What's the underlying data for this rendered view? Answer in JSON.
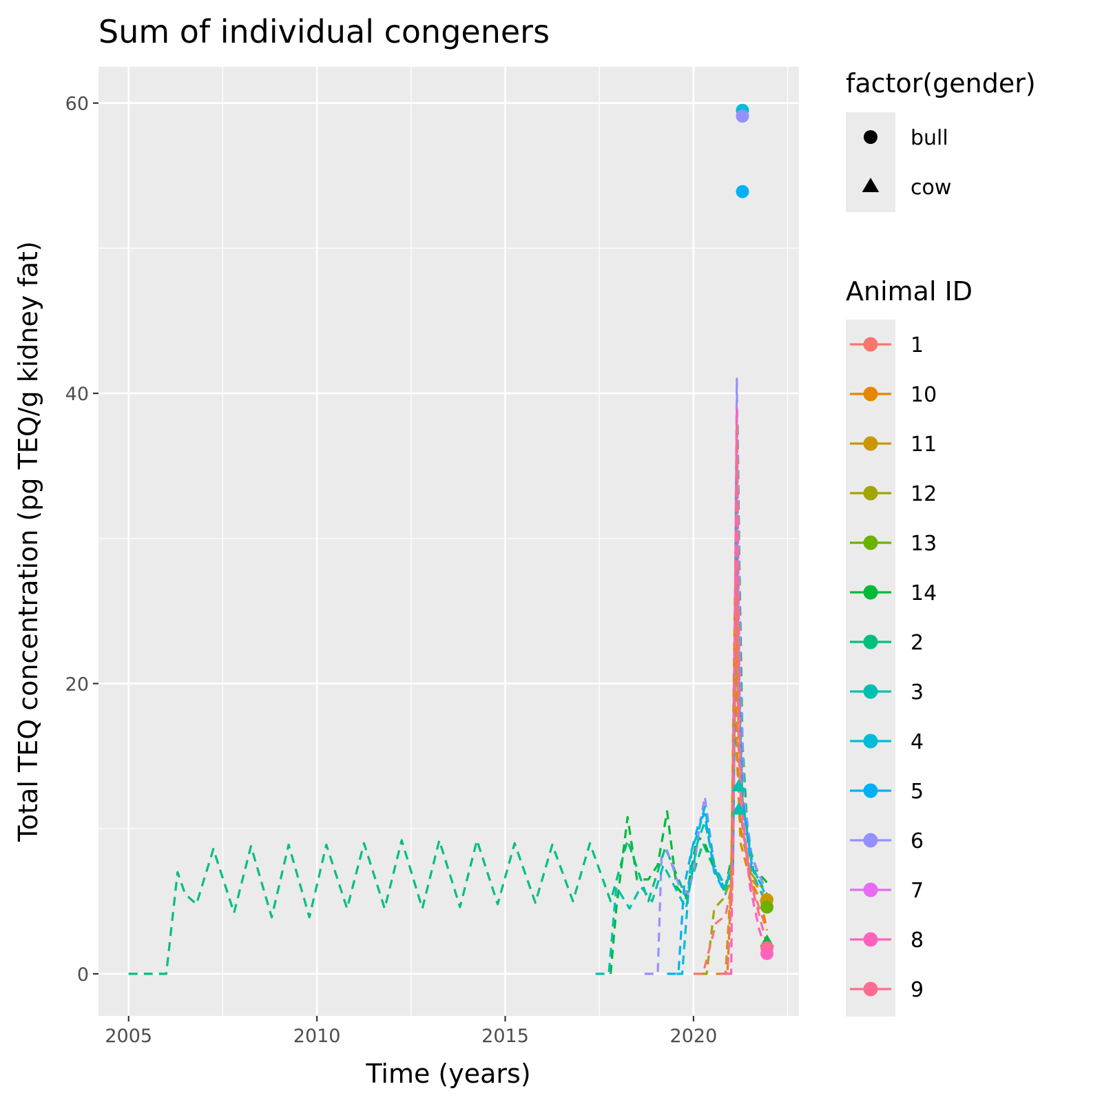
{
  "chart_data": {
    "type": "line",
    "title": "Sum of individual congeners",
    "xlabel": "Time (years)",
    "ylabel": "Total TEQ concentration (pg TEQ/g kidney fat)",
    "xlim": [
      2004.2,
      2022.8
    ],
    "ylim": [
      -2.9,
      62.5
    ],
    "x_ticks": [
      2005,
      2010,
      2015,
      2020
    ],
    "y_ticks": [
      0,
      20,
      40,
      60
    ],
    "x_tick_labels": [
      "2005",
      "2010",
      "2015",
      "2020"
    ],
    "y_tick_labels": [
      "0",
      "20",
      "40",
      "60"
    ],
    "grid": true,
    "legend_position": "right",
    "shape_legend": {
      "title": "factor(gender)",
      "items": [
        {
          "label": "bull",
          "shape": "circle"
        },
        {
          "label": "cow",
          "shape": "triangle"
        }
      ]
    },
    "color_legend": {
      "title": "Animal ID",
      "items": [
        {
          "label": "1",
          "color": "#F8766D"
        },
        {
          "label": "10",
          "color": "#E58700"
        },
        {
          "label": "11",
          "color": "#C99800"
        },
        {
          "label": "12",
          "color": "#A3A500"
        },
        {
          "label": "13",
          "color": "#6BB100"
        },
        {
          "label": "14",
          "color": "#00BA38"
        },
        {
          "label": "2",
          "color": "#00BF7D"
        },
        {
          "label": "3",
          "color": "#00C0AF"
        },
        {
          "label": "4",
          "color": "#00BCD8"
        },
        {
          "label": "5",
          "color": "#00B0F6"
        },
        {
          "label": "6",
          "color": "#9590FF"
        },
        {
          "label": "7",
          "color": "#E76BF3"
        },
        {
          "label": "8",
          "color": "#FF62BC"
        },
        {
          "label": "9",
          "color": "#FF6C91"
        }
      ]
    },
    "series": [
      {
        "id": "2",
        "color": "#00BF7D",
        "x": [
          2005.0,
          2006.0,
          2006.3,
          2006.5,
          2006.8,
          2007.25,
          2007.8,
          2008.25,
          2008.8,
          2009.25,
          2009.8,
          2010.25,
          2010.8,
          2011.25,
          2011.8,
          2012.25,
          2012.8,
          2013.25,
          2013.8,
          2014.25,
          2014.8,
          2015.25,
          2015.8,
          2016.25,
          2016.8,
          2017.25,
          2017.8,
          2018.25,
          2018.8,
          2019.25,
          2019.8,
          2020.25,
          2020.8,
          2021.0
        ],
        "y": [
          0.0,
          0.0,
          7.0,
          5.5,
          4.8,
          8.6,
          4.2,
          8.8,
          3.9,
          8.9,
          3.9,
          8.9,
          4.5,
          9.0,
          4.5,
          9.2,
          4.5,
          9.2,
          4.6,
          9.2,
          4.8,
          9.0,
          4.9,
          8.9,
          5.0,
          9.0,
          5.0,
          9.2,
          5.0,
          8.7,
          5.3,
          9.0,
          5.8,
          6.2
        ]
      },
      {
        "id": "14",
        "color": "#00BA38",
        "x": [
          2017.8,
          2017.95,
          2018.25,
          2018.5,
          2018.8,
          2019.05,
          2019.3,
          2019.55,
          2019.8,
          2020.1,
          2020.3,
          2020.6,
          2020.85,
          2021.05,
          2021.12,
          2021.17,
          2021.22,
          2021.3,
          2021.45,
          2021.7,
          2021.95
        ],
        "y": [
          0.0,
          4.5,
          10.8,
          6.5,
          6.5,
          7.5,
          11.2,
          6.0,
          5.2,
          9.5,
          9.0,
          7.0,
          6.0,
          8.5,
          25.0,
          38.0,
          28.0,
          16.0,
          9.0,
          7.0,
          6.3
        ]
      },
      {
        "id": "6",
        "color": "#9590FF",
        "x": [
          2018.7,
          2019.05,
          2019.15,
          2019.3,
          2019.6,
          2019.85,
          2020.0,
          2020.15,
          2020.3,
          2020.55,
          2020.85,
          2021.05,
          2021.15,
          2021.2,
          2021.25,
          2021.35,
          2021.55,
          2021.85
        ],
        "y": [
          0.0,
          0.0,
          8.0,
          8.5,
          6.2,
          5.5,
          7.0,
          10.0,
          12.2,
          7.5,
          5.8,
          8.0,
          41.0,
          30.0,
          20.0,
          12.0,
          8.0,
          6.2
        ]
      },
      {
        "id": "4",
        "color": "#00BCD8",
        "x": [
          2019.55,
          2019.7,
          2019.95,
          2020.15,
          2020.3,
          2020.55,
          2020.85,
          2021.05,
          2021.15,
          2021.2,
          2021.3,
          2021.55,
          2021.9
        ],
        "y": [
          0.0,
          0.0,
          8.5,
          10.0,
          11.5,
          7.5,
          6.0,
          7.5,
          31.0,
          20.0,
          12.0,
          7.5,
          5.5
        ]
      },
      {
        "id": "3",
        "color": "#00C0AF",
        "x": [
          2017.4,
          2017.75,
          2017.95,
          2018.3,
          2018.6,
          2018.9,
          2019.2,
          2019.5,
          2019.8,
          2020.1,
          2020.3,
          2020.6,
          2020.85,
          2021.05,
          2021.15,
          2021.2,
          2021.3,
          2021.6,
          2021.95
        ],
        "y": [
          0.0,
          0.0,
          6.0,
          4.5,
          6.0,
          5.0,
          7.5,
          6.0,
          4.5,
          9.0,
          10.5,
          7.0,
          5.8,
          8.2,
          35.0,
          22.0,
          12.0,
          7.0,
          5.5
        ]
      },
      {
        "id": "5",
        "color": "#00B0F6",
        "x": [
          2019.3,
          2019.6,
          2019.75,
          2019.95,
          2020.15,
          2020.3,
          2020.55,
          2020.85,
          2021.05,
          2021.15,
          2021.2,
          2021.3,
          2021.55,
          2021.9
        ],
        "y": [
          0.0,
          0.0,
          6.0,
          8.5,
          10.5,
          11.0,
          7.0,
          5.5,
          7.5,
          30.0,
          20.0,
          12.0,
          7.0,
          5.0
        ]
      },
      {
        "id": "12",
        "color": "#A3A500",
        "x": [
          2020.2,
          2020.35,
          2020.55,
          2020.8,
          2021.0,
          2021.1,
          2021.15,
          2021.25,
          2021.5,
          2021.8
        ],
        "y": [
          0.0,
          0.0,
          4.5,
          5.2,
          6.5,
          26.0,
          16.0,
          10.0,
          7.0,
          6.0
        ]
      },
      {
        "id": "1",
        "color": "#F8766D",
        "x": [
          2020.0,
          2020.25,
          2020.6,
          2020.85,
          2021.0,
          2021.12,
          2021.2,
          2021.3,
          2021.5,
          2021.75,
          2021.95
        ],
        "y": [
          0.0,
          0.0,
          3.5,
          4.0,
          6.0,
          28.0,
          18.0,
          11.0,
          6.5,
          4.5,
          3.0
        ]
      },
      {
        "id": "10",
        "color": "#E58700",
        "x": [
          2020.6,
          2020.9,
          2021.0,
          2021.1,
          2021.15,
          2021.25,
          2021.5,
          2021.8,
          2021.95
        ],
        "y": [
          0.0,
          0.0,
          6.0,
          25.0,
          15.0,
          9.0,
          6.5,
          5.0,
          3.0
        ]
      },
      {
        "id": "11",
        "color": "#C99800",
        "x": [
          2020.7,
          2020.85,
          2021.0,
          2021.12,
          2021.2,
          2021.3,
          2021.55,
          2021.85
        ],
        "y": [
          0.0,
          0.0,
          6.5,
          27.0,
          16.0,
          10.0,
          6.5,
          5.5
        ]
      },
      {
        "id": "8",
        "color": "#FF62BC",
        "x": [
          2020.9,
          2021.0,
          2021.1,
          2021.15,
          2021.25,
          2021.5,
          2021.75,
          2021.95
        ],
        "y": [
          0.0,
          0.0,
          25.0,
          39.0,
          12.0,
          6.0,
          3.0,
          1.5
        ]
      },
      {
        "id": "9",
        "color": "#FF6C91",
        "x": [
          2020.7,
          2020.9,
          2021.05,
          2021.15,
          2021.2,
          2021.3,
          2021.55,
          2021.8,
          2021.95
        ],
        "y": [
          0.0,
          0.0,
          7.0,
          38.0,
          15.0,
          10.0,
          6.0,
          3.5,
          2.0
        ]
      }
    ],
    "points": [
      {
        "id": "4",
        "x": 2021.3,
        "y": 59.5,
        "shape": "circle",
        "color": "#00BCD8"
      },
      {
        "id": "6",
        "x": 2021.3,
        "y": 59.1,
        "shape": "circle",
        "color": "#9590FF"
      },
      {
        "id": "5",
        "x": 2021.3,
        "y": 53.9,
        "shape": "circle",
        "color": "#00B0F6"
      },
      {
        "id": "3",
        "x": 2021.2,
        "y": 12.9,
        "shape": "triangle",
        "color": "#00C0AF"
      },
      {
        "id": "3",
        "x": 2021.2,
        "y": 11.3,
        "shape": "triangle",
        "color": "#00C0AF"
      },
      {
        "id": "11",
        "x": 2021.95,
        "y": 5.1,
        "shape": "circle",
        "color": "#C99800"
      },
      {
        "id": "13",
        "x": 2021.95,
        "y": 4.6,
        "shape": "circle",
        "color": "#6BB100"
      },
      {
        "id": "14",
        "x": 2021.95,
        "y": 2.2,
        "shape": "triangle",
        "color": "#00BA38"
      },
      {
        "id": "9",
        "x": 2021.95,
        "y": 1.8,
        "shape": "circle",
        "color": "#FF6C91"
      },
      {
        "id": "8",
        "x": 2021.95,
        "y": 1.4,
        "shape": "circle",
        "color": "#FF62BC"
      }
    ]
  }
}
